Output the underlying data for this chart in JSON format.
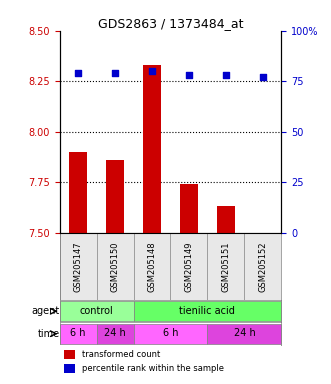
{
  "title": "GDS2863 / 1373484_at",
  "samples": [
    "GSM205147",
    "GSM205150",
    "GSM205148",
    "GSM205149",
    "GSM205151",
    "GSM205152"
  ],
  "bar_values": [
    7.9,
    7.86,
    8.33,
    7.74,
    7.63,
    7.5
  ],
  "dot_values": [
    79,
    79,
    80,
    78,
    78,
    77
  ],
  "ylim_left": [
    7.5,
    8.5
  ],
  "ylim_right": [
    0,
    100
  ],
  "yticks_left": [
    7.5,
    7.75,
    8.0,
    8.25,
    8.5
  ],
  "yticks_right": [
    0,
    25,
    50,
    75,
    100
  ],
  "bar_color": "#cc0000",
  "dot_color": "#0000cc",
  "agent_labels": [
    {
      "label": "control",
      "start": 0,
      "end": 2,
      "color": "#99ff99"
    },
    {
      "label": "tienilic acid",
      "start": 2,
      "end": 6,
      "color": "#66ff66"
    }
  ],
  "time_labels": [
    {
      "label": "6 h",
      "start": 0,
      "end": 1,
      "color": "#ff66ff"
    },
    {
      "label": "24 h",
      "start": 1,
      "end": 2,
      "color": "#dd44dd"
    },
    {
      "label": "6 h",
      "start": 2,
      "end": 4,
      "color": "#ff66ff"
    },
    {
      "label": "24 h",
      "start": 4,
      "end": 6,
      "color": "#dd44dd"
    }
  ],
  "legend_bar_label": "transformed count",
  "legend_dot_label": "percentile rank within the sample",
  "agent_row_label": "agent",
  "time_row_label": "time",
  "tick_label_color_left": "#cc0000",
  "tick_label_color_right": "#0000cc",
  "grid_linestyle": "dotted",
  "background_color": "#e8e8e8",
  "plot_bg_color": "#ffffff"
}
